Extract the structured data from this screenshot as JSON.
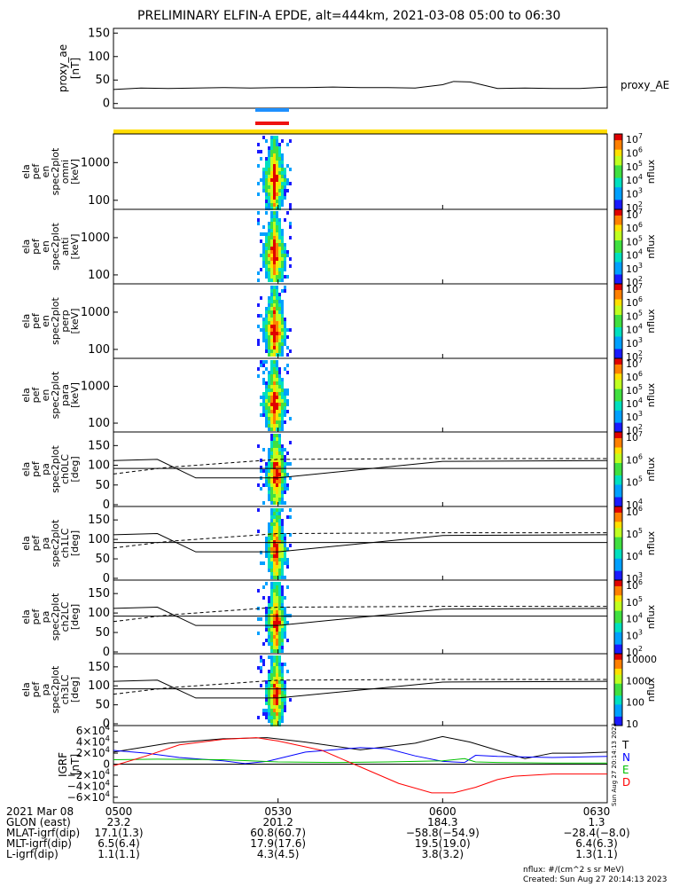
{
  "title": "PRELIMINARY ELFIN-A EPDE, alt=444km, 2021-03-08 05:00 to 06:30",
  "proxy_ae": {
    "ylabel": [
      "proxy_ae",
      "[nT]"
    ],
    "yticks": [
      "150",
      "100",
      "50",
      "0"
    ],
    "series_label": "proxy_AE",
    "ylim": [
      -10,
      160
    ],
    "x": [
      0,
      5,
      10,
      15,
      20,
      25,
      30,
      35,
      40,
      45,
      50,
      55,
      60,
      62,
      65,
      70,
      75,
      80,
      85,
      90
    ],
    "y": [
      30,
      33,
      32,
      33,
      34,
      33,
      34,
      34,
      35,
      34,
      34,
      33,
      40,
      47,
      46,
      32,
      33,
      32,
      32,
      35
    ]
  },
  "spec_panels": [
    {
      "ylabel": [
        "ela",
        "pef",
        "en",
        "spec2plot",
        "omni",
        "[keV]"
      ],
      "yticks": [
        "1000",
        "100"
      ],
      "cbar_ticks": [
        "10^7",
        "10^6",
        "10^5",
        "10^4",
        "10^3",
        "10^2"
      ],
      "cbar_label": "nflux"
    },
    {
      "ylabel": [
        "ela",
        "pef",
        "en",
        "spec2plot",
        "anti",
        "[keV]"
      ],
      "yticks": [
        "1000",
        "100"
      ],
      "cbar_ticks": [
        "10^7",
        "10^6",
        "10^5",
        "10^4",
        "10^3",
        "10^2"
      ],
      "cbar_label": "nflux"
    },
    {
      "ylabel": [
        "ela",
        "pef",
        "en",
        "spec2plot",
        "perp",
        "[keV]"
      ],
      "yticks": [
        "1000",
        "100"
      ],
      "cbar_ticks": [
        "10^7",
        "10^6",
        "10^5",
        "10^4",
        "10^3",
        "10^2"
      ],
      "cbar_label": "nflux"
    },
    {
      "ylabel": [
        "ela",
        "pef",
        "en",
        "spec2plot",
        "para",
        "[keV]"
      ],
      "yticks": [
        "1000",
        "100"
      ],
      "cbar_ticks": [
        "10^7",
        "10^6",
        "10^5",
        "10^4",
        "10^3",
        "10^2"
      ],
      "cbar_label": "nflux"
    }
  ],
  "pa_panels": [
    {
      "ylabel": [
        "ela",
        "pef",
        "pa",
        "spec2plot",
        "ch0LC",
        "[deg]"
      ],
      "yticks": [
        "150",
        "100",
        "50",
        "0"
      ],
      "cbar_ticks": [
        "10^7",
        "10^6",
        "10^5",
        "10^4"
      ],
      "cbar_label": "nflux"
    },
    {
      "ylabel": [
        "ela",
        "pef",
        "pa",
        "spec2plot",
        "ch1LC",
        "[deg]"
      ],
      "yticks": [
        "150",
        "100",
        "50",
        "0"
      ],
      "cbar_ticks": [
        "10^6",
        "10^5",
        "10^4",
        "10^3"
      ],
      "cbar_label": "nflux"
    },
    {
      "ylabel": [
        "ela",
        "pef",
        "pa",
        "spec2plot",
        "ch2LC",
        "[deg]"
      ],
      "yticks": [
        "150",
        "100",
        "50",
        "0"
      ],
      "cbar_ticks": [
        "10^6",
        "10^5",
        "10^4",
        "10^3",
        "10^2"
      ],
      "cbar_label": "nflux"
    },
    {
      "ylabel": [
        "ela",
        "pef",
        "pa",
        "spec2plot",
        "ch3LC",
        "[deg]"
      ],
      "yticks": [
        "150",
        "100",
        "50",
        "0"
      ],
      "cbar_ticks": [
        "10000",
        "1000",
        "100",
        "10"
      ],
      "cbar_label": "nflux"
    }
  ],
  "igrf": {
    "ylabel": [
      "IGRF",
      "[nT]"
    ],
    "yticks": [
      "6×10^4",
      "4×10^4",
      "2×10^4",
      "0",
      "−2×10^4",
      "−4×10^4",
      "−6×10^4"
    ],
    "ylim": [
      -70000,
      70000
    ],
    "side_text": "Sun Aug 27 20:14:13 2023",
    "series": [
      {
        "name": "T",
        "color": "#000000",
        "x": [
          0,
          10,
          20,
          28,
          35,
          45,
          55,
          60,
          65,
          75,
          80,
          85,
          90
        ],
        "y": [
          22000,
          38000,
          46000,
          48000,
          40000,
          26000,
          38000,
          50000,
          40000,
          10000,
          20000,
          20000,
          22000
        ]
      },
      {
        "name": "N",
        "color": "#0000ff",
        "x": [
          0,
          6,
          12,
          20,
          24,
          28,
          35,
          45,
          50,
          55,
          60,
          64,
          66,
          70,
          80,
          90
        ],
        "y": [
          25000,
          20000,
          12000,
          6000,
          1000,
          5000,
          22000,
          30000,
          28000,
          15000,
          5000,
          3000,
          16000,
          14000,
          12000,
          14000
        ]
      },
      {
        "name": "E",
        "color": "#00c000",
        "x": [
          0,
          8,
          20,
          30,
          40,
          50,
          60,
          64,
          66,
          70,
          80,
          90
        ],
        "y": [
          8000,
          9000,
          8000,
          4000,
          3000,
          4000,
          6000,
          10000,
          4000,
          3000,
          2000,
          2000
        ]
      },
      {
        "name": "D",
        "color": "#ff0000",
        "x": [
          0,
          6,
          12,
          20,
          26,
          30,
          38,
          45,
          52,
          58,
          62,
          66,
          70,
          73,
          80,
          90
        ],
        "y": [
          -3000,
          15000,
          35000,
          45000,
          48000,
          42000,
          25000,
          -5000,
          -35000,
          -52000,
          -52000,
          -42000,
          -28000,
          -22000,
          -18000,
          -18000
        ]
      }
    ]
  },
  "footer": {
    "rows": [
      {
        "label": "2021 Mar 08",
        "values": [
          "0500",
          "0530",
          "0600",
          "0630"
        ]
      },
      {
        "label": "GLON (east)",
        "values": [
          "23.2",
          "201.2",
          "184.3",
          "1.3"
        ]
      },
      {
        "label": "MLAT-igrf(dip)",
        "values": [
          "17.1(1.3)",
          "60.8(60.7)",
          "−58.8(−54.9)",
          "−28.4(−8.0)"
        ]
      },
      {
        "label": "MLT-igrf(dip)",
        "values": [
          "6.5(6.4)",
          "17.9(17.6)",
          "19.5(19.0)",
          "6.4(6.3)"
        ]
      },
      {
        "label": "L-igrf(dip)",
        "values": [
          "1.1(1.1)",
          "4.3(4.5)",
          "3.8(3.2)",
          "1.3(1.1)"
        ]
      }
    ],
    "units": "nflux: #/(cm^2 s sr MeV)",
    "created": "Created: Sun Aug 27 20:14:13 2023"
  },
  "chart_data": {
    "type": "line",
    "title": "PRELIMINARY ELFIN-A EPDE, alt=444km, 2021-03-08 05:00 to 06:30",
    "time_range": [
      "2021-03-08 05:00",
      "2021-03-08 06:30"
    ],
    "xticks": [
      "0500",
      "0530",
      "0600",
      "0630"
    ],
    "panels": [
      "proxy_ae",
      "spec omni",
      "spec anti",
      "spec perp",
      "spec para",
      "pa ch0LC",
      "pa ch1LC",
      "pa ch2LC",
      "pa ch3LC",
      "IGRF"
    ],
    "colors": {
      "science_zone_bar": "#ffdd00",
      "orbit_bar_blue": "#1e90ff",
      "orbit_bar_red": "#ee1111"
    }
  }
}
